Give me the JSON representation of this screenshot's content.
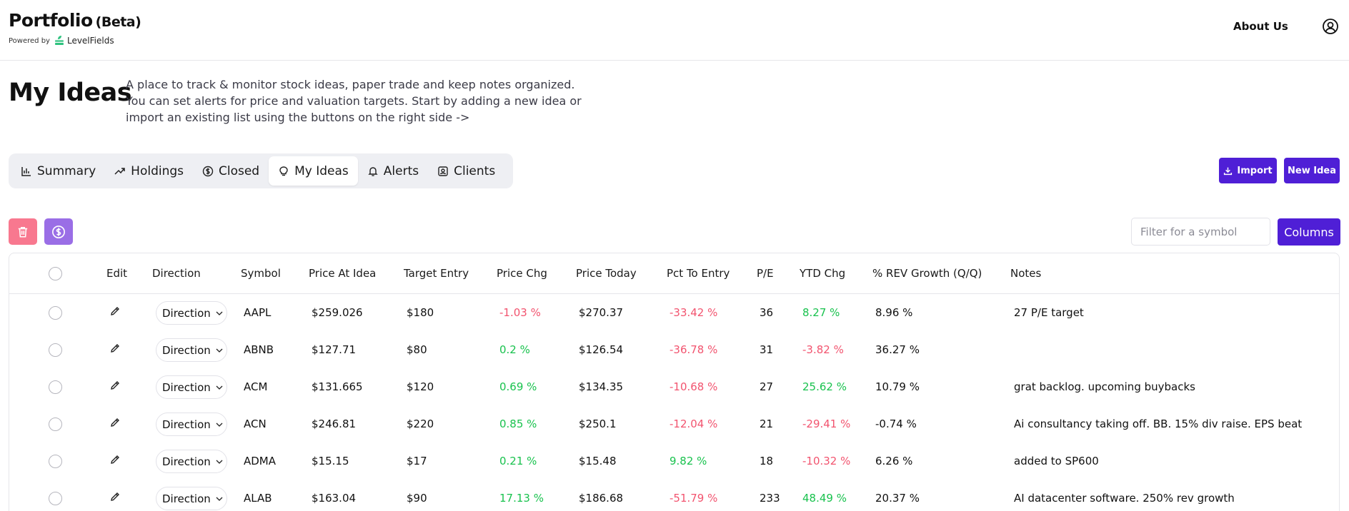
{
  "header": {
    "brand": "Portfolio",
    "beta": "(Beta)",
    "powered_by": "Powered by",
    "logo_text": "LevelFields",
    "about": "About Us"
  },
  "hero": {
    "title": "My Ideas",
    "description": "A place to track & monitor stock ideas, paper trade and keep notes organized. You can set alerts for price and valuation targets. Start by adding a new idea or import an existing list using the buttons on the right side ->"
  },
  "tabs": [
    {
      "label": "Summary",
      "icon": "chart-icon"
    },
    {
      "label": "Holdings",
      "icon": "trend-icon"
    },
    {
      "label": "Closed",
      "icon": "dollar-circle-icon"
    },
    {
      "label": "My Ideas",
      "icon": "lightbulb-icon",
      "active": true
    },
    {
      "label": "Alerts",
      "icon": "bell-icon"
    },
    {
      "label": "Clients",
      "icon": "contact-icon"
    }
  ],
  "actions": {
    "import": "Import",
    "new_idea": "New Idea",
    "columns": "Columns",
    "filter_placeholder": "Filter for a symbol"
  },
  "colors": {
    "accent": "#4f1fd6",
    "positive": "#19c24e",
    "negative": "#f2546f",
    "trash_button": "#f8788f",
    "dollar_button": "#9a6ee6"
  },
  "table": {
    "columns": [
      "Edit",
      "Direction",
      "Symbol",
      "Price At Idea",
      "Target Entry",
      "Price Chg",
      "Price Today",
      "Pct To Entry",
      "P/E",
      "YTD Chg",
      "% REV Growth (Q/Q)",
      "Notes"
    ],
    "rows": [
      {
        "direction": "Direction",
        "symbol": "AAPL",
        "price_at_idea": "$259.026",
        "target_entry": "$180",
        "price_chg": "-1.03 %",
        "price_today": "$270.37",
        "pct_to_entry": "-33.42 %",
        "pe": "36",
        "ytd_chg": "8.27 %",
        "rev_growth": "8.96 %",
        "notes": "27 P/E target"
      },
      {
        "direction": "Direction",
        "symbol": "ABNB",
        "price_at_idea": "$127.71",
        "target_entry": "$80",
        "price_chg": "0.2 %",
        "price_today": "$126.54",
        "pct_to_entry": "-36.78 %",
        "pe": "31",
        "ytd_chg": "-3.82 %",
        "rev_growth": "36.27 %",
        "notes": ""
      },
      {
        "direction": "Direction",
        "symbol": "ACM",
        "price_at_idea": "$131.665",
        "target_entry": "$120",
        "price_chg": "0.69 %",
        "price_today": "$134.35",
        "pct_to_entry": "-10.68 %",
        "pe": "27",
        "ytd_chg": "25.62 %",
        "rev_growth": "10.79 %",
        "notes": "grat backlog. upcoming buybacks"
      },
      {
        "direction": "Direction",
        "symbol": "ACN",
        "price_at_idea": "$246.81",
        "target_entry": "$220",
        "price_chg": "0.85 %",
        "price_today": "$250.1",
        "pct_to_entry": "-12.04 %",
        "pe": "21",
        "ytd_chg": "-29.41 %",
        "rev_growth": "-0.74 %",
        "notes": "Ai consultancy taking off. BB. 15% div raise. EPS beat"
      },
      {
        "direction": "Direction",
        "symbol": "ADMA",
        "price_at_idea": "$15.15",
        "target_entry": "$17",
        "price_chg": "0.21 %",
        "price_today": "$15.48",
        "pct_to_entry": "9.82 %",
        "pe": "18",
        "ytd_chg": "-10.32 %",
        "rev_growth": "6.26 %",
        "notes": "added to SP600"
      },
      {
        "direction": "Direction",
        "symbol": "ALAB",
        "price_at_idea": "$163.04",
        "target_entry": "$90",
        "price_chg": "17.13 %",
        "price_today": "$186.68",
        "pct_to_entry": "-51.79 %",
        "pe": "233",
        "ytd_chg": "48.49 %",
        "rev_growth": "20.37 %",
        "notes": "AI datacenter software. 250% rev growth"
      }
    ]
  }
}
